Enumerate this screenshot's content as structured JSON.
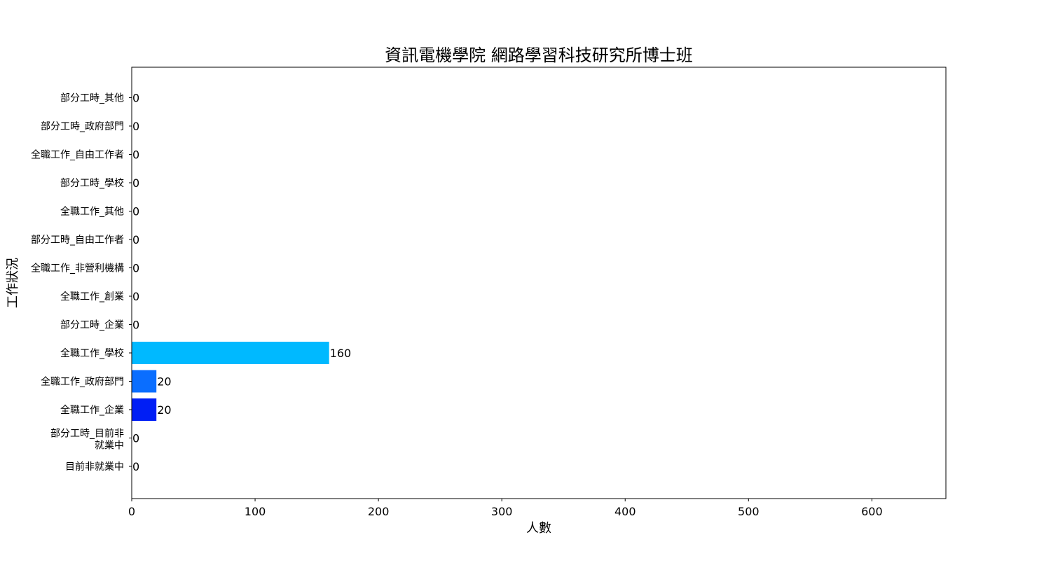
{
  "chart_data": {
    "type": "bar",
    "orientation": "horizontal",
    "title": "資訊電機學院 網路學習科技研究所博士班",
    "xlabel": "人數",
    "ylabel": "工作狀況",
    "categories": [
      "目前非就業中",
      "部分工時_目前非\n就業中",
      "全職工作_企業",
      "全職工作_政府部門",
      "全職工作_學校",
      "部分工時_企業",
      "全職工作_創業",
      "全職工作_非營利機構",
      "部分工時_自由工作者",
      "全職工作_其他",
      "部分工時_學校",
      "全職工作_自由工作者",
      "部分工時_政府部門",
      "部分工時_其他"
    ],
    "values": [
      0,
      0,
      20,
      20,
      160,
      0,
      0,
      0,
      0,
      0,
      0,
      0,
      0,
      0
    ],
    "data_labels": [
      "0",
      "0",
      "20",
      "20",
      "160",
      "0",
      "0",
      "0",
      "0",
      "0",
      "0",
      "0",
      "0",
      "0"
    ],
    "bar_colors": [
      "#001ef5",
      "#001ef5",
      "#001ef5",
      "#0a6eff",
      "#00b9ff",
      "#001ef5",
      "#001ef5",
      "#001ef5",
      "#001ef5",
      "#001ef5",
      "#001ef5",
      "#001ef5",
      "#001ef5",
      "#001ef5"
    ],
    "xlim": [
      0,
      660
    ],
    "xticks": [
      0,
      100,
      200,
      300,
      400,
      500,
      600
    ],
    "xtick_labels": [
      "0",
      "100",
      "200",
      "300",
      "400",
      "500",
      "600"
    ],
    "grid": false,
    "legend": "none"
  }
}
